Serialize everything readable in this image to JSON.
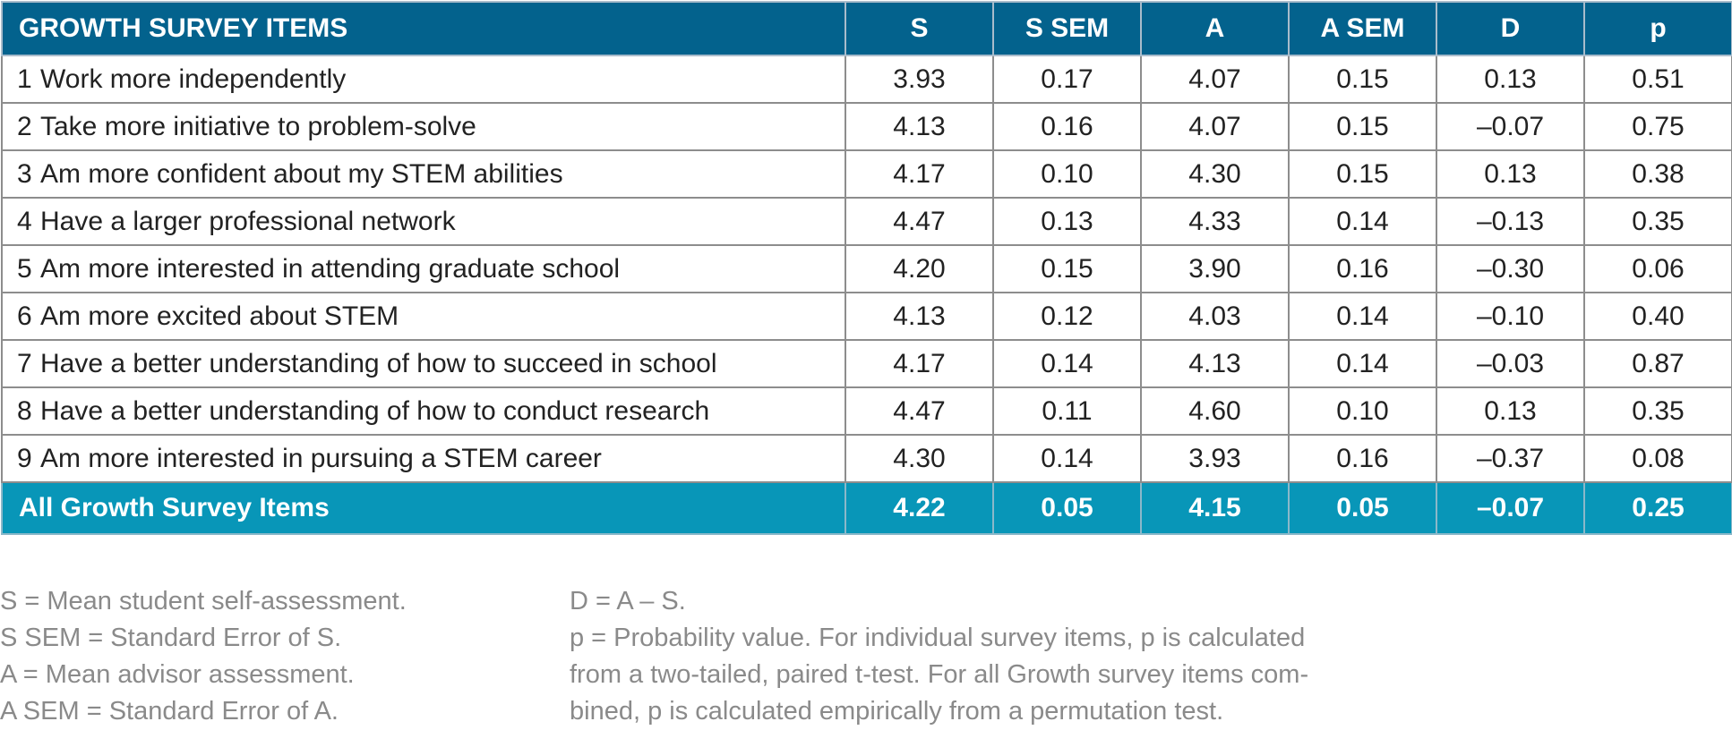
{
  "table": {
    "headers": [
      "GROWTH SURVEY ITEMS",
      "S",
      "S SEM",
      "A",
      "A SEM",
      "D",
      "p"
    ],
    "rows": [
      {
        "num": "1",
        "item": "Work more independently",
        "s": "3.93",
        "s_sem": "0.17",
        "a": "4.07",
        "a_sem": "0.15",
        "d": "0.13",
        "p": "0.51"
      },
      {
        "num": "2",
        "item": "Take more initiative to problem-solve",
        "s": "4.13",
        "s_sem": "0.16",
        "a": "4.07",
        "a_sem": "0.15",
        "d": "–0.07",
        "p": "0.75"
      },
      {
        "num": "3",
        "item": "Am more confident about my STEM abilities",
        "s": "4.17",
        "s_sem": "0.10",
        "a": "4.30",
        "a_sem": "0.15",
        "d": "0.13",
        "p": "0.38"
      },
      {
        "num": "4",
        "item": "Have a larger professional network",
        "s": "4.47",
        "s_sem": "0.13",
        "a": "4.33",
        "a_sem": "0.14",
        "d": "–0.13",
        "p": "0.35"
      },
      {
        "num": "5",
        "item": "Am more interested in attending graduate school",
        "s": "4.20",
        "s_sem": "0.15",
        "a": "3.90",
        "a_sem": "0.16",
        "d": "–0.30",
        "p": "0.06"
      },
      {
        "num": "6",
        "item": "Am more excited about STEM",
        "s": "4.13",
        "s_sem": "0.12",
        "a": "4.03",
        "a_sem": "0.14",
        "d": "–0.10",
        "p": "0.40"
      },
      {
        "num": "7",
        "item": "Have a better understanding of how to succeed in school",
        "s": "4.17",
        "s_sem": "0.14",
        "a": "4.13",
        "a_sem": "0.14",
        "d": "–0.03",
        "p": "0.87"
      },
      {
        "num": "8",
        "item": "Have a better understanding of how to conduct research",
        "s": "4.47",
        "s_sem": "0.11",
        "a": "4.60",
        "a_sem": "0.10",
        "d": "0.13",
        "p": "0.35"
      },
      {
        "num": "9",
        "item": "Am more interested in pursuing a STEM career",
        "s": "4.30",
        "s_sem": "0.14",
        "a": "3.93",
        "a_sem": "0.16",
        "d": "–0.37",
        "p": "0.08"
      }
    ],
    "summary": {
      "item": "All Growth Survey Items",
      "s": "4.22",
      "s_sem": "0.05",
      "a": "4.15",
      "a_sem": "0.05",
      "d": "–0.07",
      "p": "0.25"
    }
  },
  "notes": {
    "left": [
      "S = Mean student self-assessment.",
      "S SEM = Standard Error of S.",
      "A = Mean advisor assessment.",
      "A SEM = Standard Error of A."
    ],
    "right": [
      "D = A – S.",
      "p = Probability value. For individual survey items, p is calculated",
      "from a two-tailed, paired t-test. For all Growth survey items com-",
      "bined, p is calculated empirically from a permutation test."
    ]
  },
  "colors": {
    "header_bg": "#03628d",
    "summary_bg": "#0896b8",
    "note_text": "#8a8a8a"
  }
}
